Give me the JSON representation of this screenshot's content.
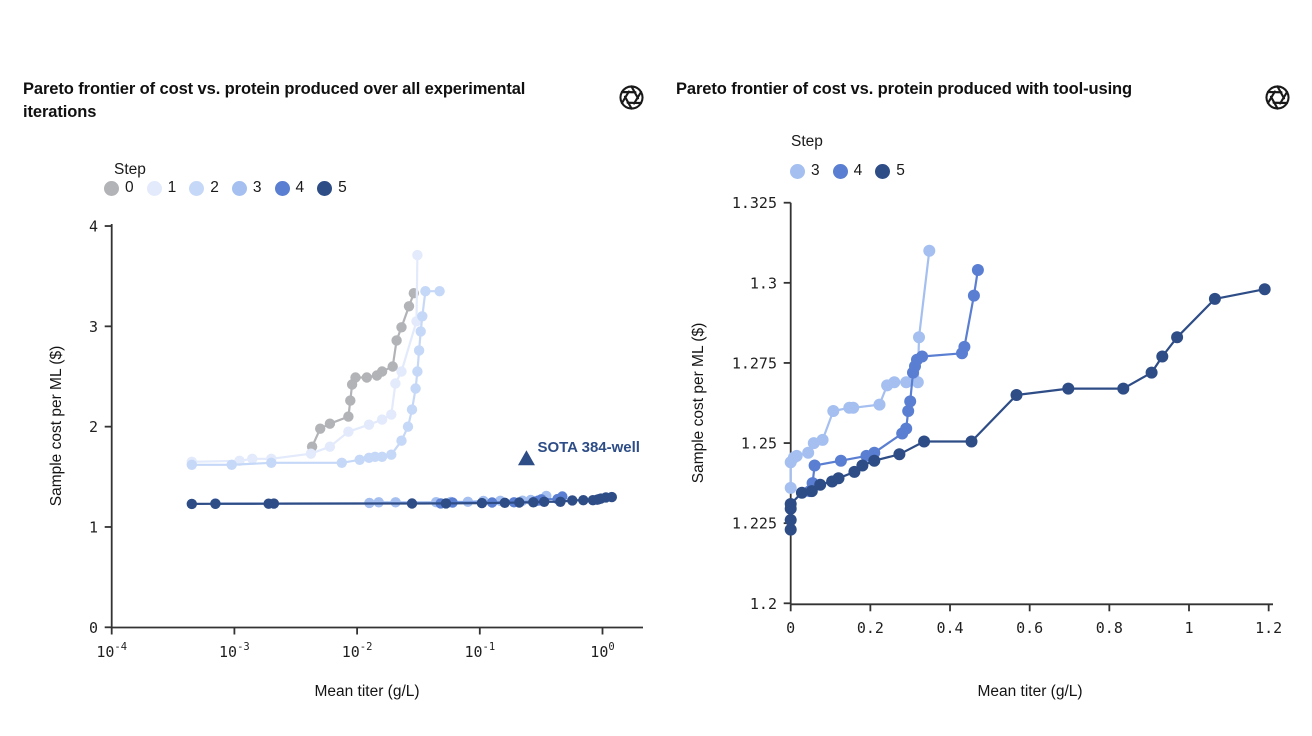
{
  "palette": {
    "step0": "#b2b3b7",
    "step1": "#e2eafb",
    "step2": "#c6d8f7",
    "step3": "#a4bff0",
    "step4": "#5a7ed1",
    "step5": "#2e4d87",
    "axis": "#333333",
    "title_text": "#101010",
    "annotation": "#2e4d87"
  },
  "logo_name": "openai-logo",
  "chart_data": [
    {
      "type": "line",
      "title": "Pareto frontier of cost vs. protein produced over all experimental iterations",
      "xlabel": "Mean titer (g/L)",
      "ylabel": "Sample cost per ML ($)",
      "legend_title": "Step",
      "legend_position": "top-left",
      "x_scale": "log10",
      "xlim_log10": [
        -4,
        0.33
      ],
      "ylim": [
        0,
        4
      ],
      "grid": false,
      "x_ticks": [
        {
          "v": 0.0001,
          "base": "10",
          "exp": "-4"
        },
        {
          "v": 0.001,
          "base": "10",
          "exp": "-3"
        },
        {
          "v": 0.01,
          "base": "10",
          "exp": "-2"
        },
        {
          "v": 0.1,
          "base": "10",
          "exp": "-1"
        },
        {
          "v": 1,
          "base": "10",
          "exp": "0"
        }
      ],
      "y_ticks": [
        {
          "v": 0,
          "label": "0"
        },
        {
          "v": 1,
          "label": "1"
        },
        {
          "v": 2,
          "label": "2"
        },
        {
          "v": 3,
          "label": "3"
        },
        {
          "v": 4,
          "label": "4"
        }
      ],
      "annotation": {
        "label": "SOTA 384-well",
        "x": 0.24,
        "y": 1.68,
        "marker": "triangle"
      },
      "series": [
        {
          "step": "0",
          "color": "#b2b3b7",
          "points": [
            [
              0.0043,
              1.8
            ],
            [
              0.005,
              1.98
            ],
            [
              0.006,
              2.03
            ],
            [
              0.0085,
              2.1
            ],
            [
              0.0088,
              2.26
            ],
            [
              0.0091,
              2.42
            ],
            [
              0.0097,
              2.49
            ],
            [
              0.012,
              2.49
            ],
            [
              0.0145,
              2.51
            ],
            [
              0.016,
              2.55
            ],
            [
              0.0195,
              2.6
            ],
            [
              0.021,
              2.86
            ],
            [
              0.023,
              2.99
            ],
            [
              0.0265,
              3.2
            ],
            [
              0.029,
              3.33
            ]
          ]
        },
        {
          "step": "1",
          "color": "#e2eafb",
          "points": [
            [
              0.00045,
              1.65
            ],
            [
              0.0011,
              1.66
            ],
            [
              0.0014,
              1.68
            ],
            [
              0.002,
              1.68
            ],
            [
              0.0042,
              1.73
            ],
            [
              0.006,
              1.8
            ],
            [
              0.0085,
              1.95
            ],
            [
              0.0125,
              2.02
            ],
            [
              0.016,
              2.07
            ],
            [
              0.019,
              2.12
            ],
            [
              0.0205,
              2.43
            ],
            [
              0.023,
              2.55
            ],
            [
              0.0305,
              3.05
            ],
            [
              0.031,
              3.71
            ]
          ]
        },
        {
          "step": "2",
          "color": "#c6d8f7",
          "points": [
            [
              0.00045,
              1.62
            ],
            [
              0.00095,
              1.62
            ],
            [
              0.002,
              1.64
            ],
            [
              0.0075,
              1.64
            ],
            [
              0.0105,
              1.67
            ],
            [
              0.0125,
              1.69
            ],
            [
              0.014,
              1.7
            ],
            [
              0.016,
              1.7
            ],
            [
              0.019,
              1.72
            ],
            [
              0.023,
              1.86
            ],
            [
              0.026,
              2.0
            ],
            [
              0.028,
              2.17
            ],
            [
              0.03,
              2.38
            ],
            [
              0.031,
              2.55
            ],
            [
              0.032,
              2.76
            ],
            [
              0.033,
              2.95
            ],
            [
              0.034,
              3.1
            ],
            [
              0.036,
              3.35
            ],
            [
              0.047,
              3.35
            ]
          ]
        },
        {
          "step": "3",
          "color": "#a4bff0",
          "points": [
            [
              0.0126,
              1.24
            ],
            [
              0.015,
              1.246
            ],
            [
              0.0206,
              1.246
            ],
            [
              0.044,
              1.247
            ],
            [
              0.058,
              1.25
            ],
            [
              0.08,
              1.251
            ],
            [
              0.107,
              1.26
            ],
            [
              0.147,
              1.261
            ],
            [
              0.223,
              1.262
            ],
            [
              0.26,
              1.269
            ],
            [
              0.319,
              1.269
            ],
            [
              0.348,
              1.31
            ]
          ]
        },
        {
          "step": "4",
          "color": "#5a7ed1",
          "points": [
            [
              0.0007,
              1.233
            ],
            [
              0.048,
              1.235
            ],
            [
              0.06,
              1.243
            ],
            [
              0.126,
              1.2445
            ],
            [
              0.19,
              1.246
            ],
            [
              0.28,
              1.253
            ],
            [
              0.3,
              1.263
            ],
            [
              0.317,
              1.276
            ],
            [
              0.43,
              1.278
            ],
            [
              0.47,
              1.304
            ]
          ]
        },
        {
          "step": "5",
          "color": "#2e4d87",
          "points": [
            [
              0.00045,
              1.23
            ],
            [
              0.0007,
              1.231
            ],
            [
              0.0019,
              1.232
            ],
            [
              0.0021,
              1.233
            ],
            [
              0.028,
              1.2345
            ],
            [
              0.053,
              1.235
            ],
            [
              0.104,
              1.238
            ],
            [
              0.16,
              1.241
            ],
            [
              0.21,
              1.2445
            ],
            [
              0.273,
              1.2465
            ],
            [
              0.335,
              1.2505
            ],
            [
              0.454,
              1.2505
            ],
            [
              0.567,
              1.265
            ],
            [
              0.697,
              1.267
            ],
            [
              0.835,
              1.267
            ],
            [
              0.906,
              1.272
            ],
            [
              0.933,
              1.277
            ],
            [
              0.97,
              1.283
            ],
            [
              1.065,
              1.295
            ],
            [
              1.19,
              1.298
            ]
          ]
        }
      ]
    },
    {
      "type": "line",
      "title": "Pareto frontier of cost vs. protein produced with tool-using",
      "xlabel": "Mean titer (g/L)",
      "ylabel": "Sample cost per ML ($)",
      "legend_title": "Step",
      "legend_position": "top-left",
      "x_scale": "linear",
      "xlim": [
        0,
        1.21
      ],
      "ylim": [
        1.2,
        1.325
      ],
      "grid": false,
      "x_ticks": [
        {
          "v": 0,
          "label": "0"
        },
        {
          "v": 0.2,
          "label": "0.2"
        },
        {
          "v": 0.4,
          "label": "0.4"
        },
        {
          "v": 0.6,
          "label": "0.6"
        },
        {
          "v": 0.8,
          "label": "0.8"
        },
        {
          "v": 1,
          "label": "1"
        },
        {
          "v": 1.2,
          "label": "1.2"
        }
      ],
      "y_ticks": [
        {
          "v": 1.2,
          "label": "1.2"
        },
        {
          "v": 1.225,
          "label": "1.225"
        },
        {
          "v": 1.25,
          "label": "1.25"
        },
        {
          "v": 1.275,
          "label": "1.275"
        },
        {
          "v": 1.3,
          "label": "1.3"
        },
        {
          "v": 1.325,
          "label": "1.325"
        }
      ],
      "series": [
        {
          "step": "3",
          "color": "#a4bff0",
          "points": [
            [
              0,
              1.236
            ],
            [
              0,
              1.244
            ],
            [
              0.008,
              1.2455
            ],
            [
              0.015,
              1.246
            ],
            [
              0.044,
              1.247
            ],
            [
              0.058,
              1.25
            ],
            [
              0.08,
              1.251
            ],
            [
              0.107,
              1.26
            ],
            [
              0.147,
              1.261
            ],
            [
              0.157,
              1.261
            ],
            [
              0.223,
              1.262
            ],
            [
              0.242,
              1.268
            ],
            [
              0.26,
              1.269
            ],
            [
              0.29,
              1.269
            ],
            [
              0.319,
              1.269
            ],
            [
              0.322,
              1.283
            ],
            [
              0.348,
              1.31
            ]
          ]
        },
        {
          "step": "4",
          "color": "#5a7ed1",
          "points": [
            [
              0.048,
              1.235
            ],
            [
              0.055,
              1.2375
            ],
            [
              0.06,
              1.243
            ],
            [
              0.126,
              1.2445
            ],
            [
              0.19,
              1.246
            ],
            [
              0.21,
              1.247
            ],
            [
              0.28,
              1.253
            ],
            [
              0.29,
              1.2545
            ],
            [
              0.295,
              1.26
            ],
            [
              0.3,
              1.263
            ],
            [
              0.307,
              1.272
            ],
            [
              0.312,
              1.274
            ],
            [
              0.317,
              1.276
            ],
            [
              0.33,
              1.277
            ],
            [
              0.43,
              1.278
            ],
            [
              0.436,
              1.28
            ],
            [
              0.46,
              1.296
            ],
            [
              0.47,
              1.304
            ]
          ]
        },
        {
          "step": "5",
          "color": "#2e4d87",
          "points": [
            [
              0,
              1.223
            ],
            [
              0,
              1.226
            ],
            [
              0,
              1.2295
            ],
            [
              0,
              1.231
            ],
            [
              0.028,
              1.2345
            ],
            [
              0.053,
              1.235
            ],
            [
              0.074,
              1.237
            ],
            [
              0.104,
              1.238
            ],
            [
              0.12,
              1.239
            ],
            [
              0.16,
              1.241
            ],
            [
              0.18,
              1.243
            ],
            [
              0.21,
              1.2445
            ],
            [
              0.273,
              1.2465
            ],
            [
              0.335,
              1.2505
            ],
            [
              0.454,
              1.2505
            ],
            [
              0.567,
              1.265
            ],
            [
              0.697,
              1.267
            ],
            [
              0.835,
              1.267
            ],
            [
              0.906,
              1.272
            ],
            [
              0.933,
              1.277
            ],
            [
              0.97,
              1.283
            ],
            [
              1.065,
              1.295
            ],
            [
              1.19,
              1.298
            ]
          ]
        }
      ]
    }
  ]
}
